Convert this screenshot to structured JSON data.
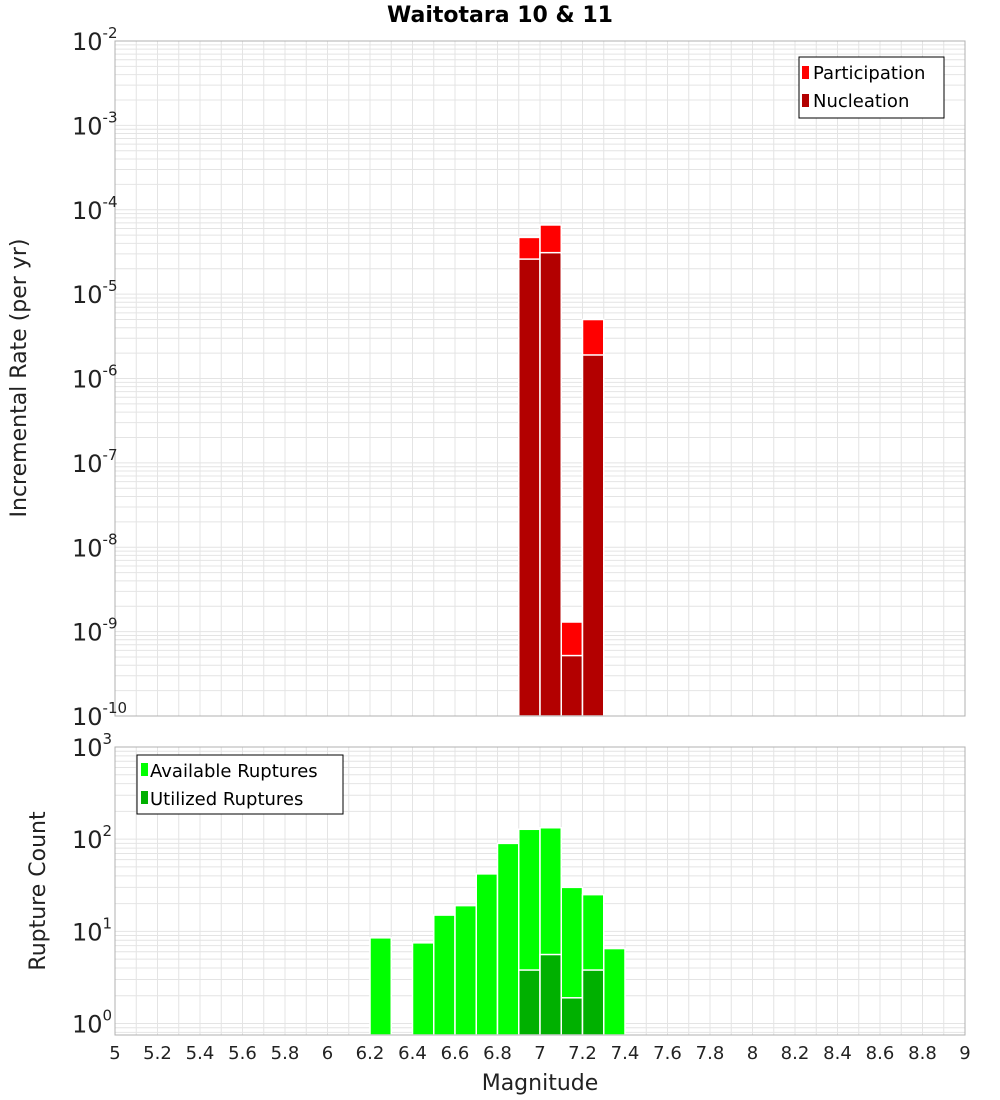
{
  "chart_data": [
    {
      "type": "bar",
      "title": "Waitotara 10 & 11",
      "xlabel": "Magnitude",
      "ylabel": "Incremental Rate (per yr)",
      "yscale": "log",
      "ylim": [
        1e-10,
        0.01
      ],
      "xlim": [
        5,
        9
      ],
      "bin_width": 0.1,
      "grid": true,
      "legend_position": "top-right",
      "yticks": [
        {
          "base": "10",
          "exp": "-10",
          "value": 1e-10
        },
        {
          "base": "10",
          "exp": "-9",
          "value": 1e-09
        },
        {
          "base": "10",
          "exp": "-8",
          "value": 1e-08
        },
        {
          "base": "10",
          "exp": "-7",
          "value": 1e-07
        },
        {
          "base": "10",
          "exp": "-6",
          "value": 1e-06
        },
        {
          "base": "10",
          "exp": "-5",
          "value": 1e-05
        },
        {
          "base": "10",
          "exp": "-4",
          "value": 0.0001
        },
        {
          "base": "10",
          "exp": "-3",
          "value": 0.001
        },
        {
          "base": "10",
          "exp": "-2",
          "value": 0.01
        }
      ],
      "series": [
        {
          "name": "Participation",
          "color": "#ff0000",
          "points": [
            {
              "x": 6.95,
              "y": 4.7e-05
            },
            {
              "x": 7.05,
              "y": 6.6e-05
            },
            {
              "x": 7.15,
              "y": 1.3e-09
            },
            {
              "x": 7.25,
              "y": 5e-06
            }
          ]
        },
        {
          "name": "Nucleation",
          "color": "#b30000",
          "points": [
            {
              "x": 6.95,
              "y": 2.6e-05
            },
            {
              "x": 7.05,
              "y": 3.1e-05
            },
            {
              "x": 7.15,
              "y": 5.2e-10
            },
            {
              "x": 7.25,
              "y": 1.9e-06
            }
          ]
        }
      ]
    },
    {
      "type": "bar",
      "xlabel": "Magnitude",
      "ylabel": "Rupture Count",
      "yscale": "log",
      "ylim": [
        0.75,
        1000
      ],
      "xlim": [
        5,
        9
      ],
      "bin_width": 0.1,
      "grid": true,
      "legend_position": "top-left",
      "yticks": [
        {
          "base": "10",
          "exp": "0",
          "value": 1
        },
        {
          "base": "10",
          "exp": "1",
          "value": 10
        },
        {
          "base": "10",
          "exp": "2",
          "value": 100
        },
        {
          "base": "10",
          "exp": "3",
          "value": 1000
        }
      ],
      "series": [
        {
          "name": "Available Ruptures",
          "color": "#00ff00",
          "points": [
            {
              "x": 6.25,
              "y": 8.5
            },
            {
              "x": 6.45,
              "y": 7.5
            },
            {
              "x": 6.55,
              "y": 15
            },
            {
              "x": 6.65,
              "y": 19
            },
            {
              "x": 6.75,
              "y": 42
            },
            {
              "x": 6.85,
              "y": 90
            },
            {
              "x": 6.95,
              "y": 128
            },
            {
              "x": 7.05,
              "y": 133
            },
            {
              "x": 7.15,
              "y": 30
            },
            {
              "x": 7.25,
              "y": 25
            },
            {
              "x": 7.35,
              "y": 6.5
            }
          ]
        },
        {
          "name": "Utilized Ruptures",
          "color": "#00b000",
          "points": [
            {
              "x": 6.95,
              "y": 3.8
            },
            {
              "x": 7.05,
              "y": 5.6
            },
            {
              "x": 7.15,
              "y": 1.9
            },
            {
              "x": 7.25,
              "y": 3.8
            }
          ]
        }
      ]
    }
  ],
  "xticks": [
    "5",
    "5.2",
    "5.4",
    "5.6",
    "5.8",
    "6",
    "6.2",
    "6.4",
    "6.6",
    "6.8",
    "7",
    "7.2",
    "7.4",
    "7.6",
    "7.8",
    "8",
    "8.2",
    "8.4",
    "8.6",
    "8.8",
    "9"
  ],
  "colors": {
    "plot_border": "#b0b0b0",
    "grid": "#e4e4e4",
    "bar_edge": "#ffffff"
  }
}
